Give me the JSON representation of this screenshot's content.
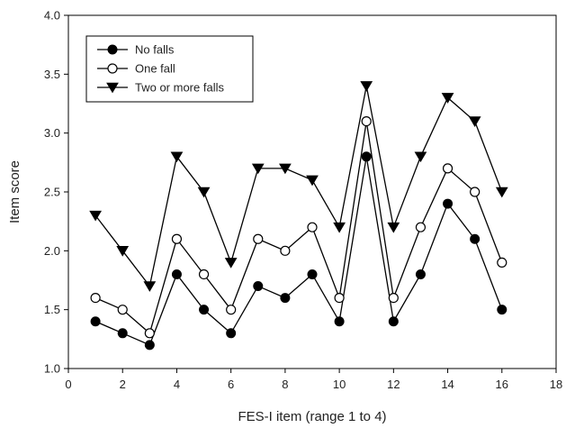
{
  "chart_data": {
    "type": "line",
    "title": "",
    "xlabel": "FES-I item (range 1 to 4)",
    "ylabel": "Item score",
    "xlim": [
      0,
      18
    ],
    "ylim": [
      1.0,
      4.0
    ],
    "x_ticks": [
      "0",
      "2",
      "4",
      "6",
      "8",
      "10",
      "12",
      "14",
      "16",
      "18"
    ],
    "y_ticks": [
      "1.0",
      "1.5",
      "2.0",
      "2.5",
      "3.0",
      "3.5",
      "4.0"
    ],
    "x": [
      1,
      2,
      3,
      4,
      5,
      6,
      7,
      8,
      9,
      10,
      11,
      12,
      13,
      14,
      15,
      16
    ],
    "legend_position": "top-left",
    "grid": false,
    "series": [
      {
        "name": "No falls",
        "marker": "filled-circle",
        "values": [
          1.4,
          1.3,
          1.2,
          1.8,
          1.5,
          1.3,
          1.7,
          1.6,
          1.8,
          1.4,
          2.8,
          1.4,
          1.8,
          2.4,
          2.1,
          1.5
        ]
      },
      {
        "name": "One fall",
        "marker": "open-circle",
        "values": [
          1.6,
          1.5,
          1.3,
          2.1,
          1.8,
          1.5,
          2.1,
          2.0,
          2.2,
          1.6,
          3.1,
          1.6,
          2.2,
          2.7,
          2.5,
          1.9
        ]
      },
      {
        "name": "Two or more falls",
        "marker": "filled-triangle-down",
        "values": [
          2.3,
          2.0,
          1.7,
          2.8,
          2.5,
          1.9,
          2.7,
          2.7,
          2.6,
          2.2,
          3.4,
          2.2,
          2.8,
          3.3,
          3.1,
          2.5
        ]
      }
    ],
    "colors": {
      "line": "#000000",
      "marker_fill": "#000000",
      "background": "#ffffff"
    }
  }
}
